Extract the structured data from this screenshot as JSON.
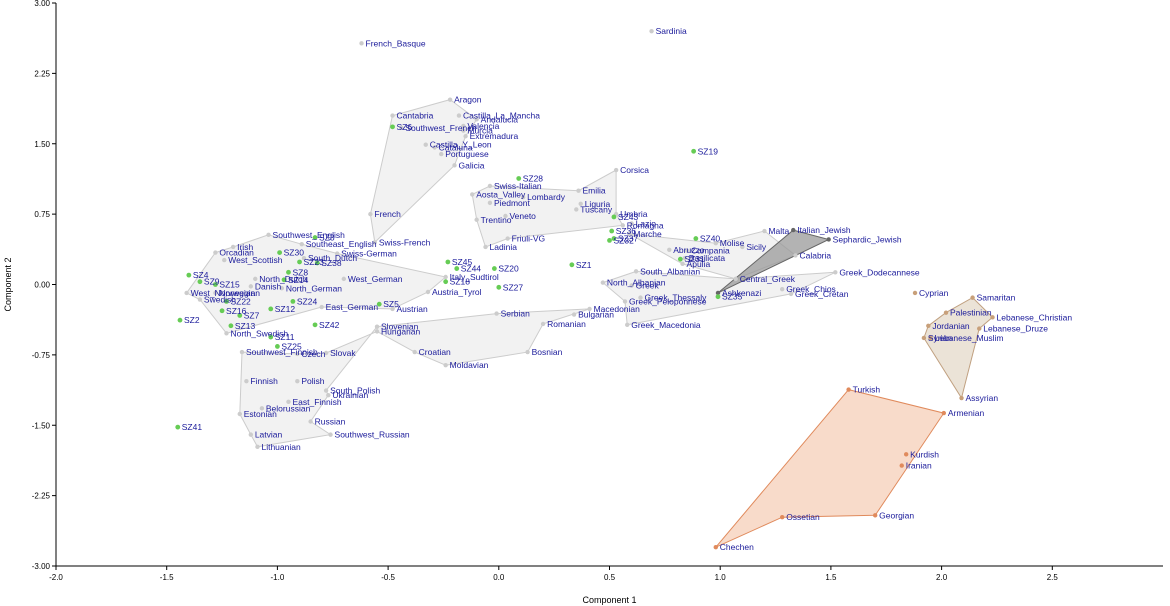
{
  "chart_data": {
    "type": "scatter",
    "xlabel": "Component 1",
    "ylabel": "Component 2",
    "xlim": [
      -2.0,
      3.0
    ],
    "ylim": [
      -3.0,
      3.0
    ],
    "xticks": [
      "-2.0",
      "-1.5",
      "-1.0",
      "-0.5",
      "0.0",
      "0.5",
      "1.0",
      "1.5",
      "2.0",
      "2.5"
    ],
    "xtick_values": [
      -2.0,
      -1.5,
      -1.0,
      -0.5,
      0.0,
      0.5,
      1.0,
      1.5,
      2.0,
      2.5
    ],
    "yticks": [
      "3.00",
      "2.25",
      "1.50",
      "0.75",
      "0.00",
      "-0.75",
      "-1.50",
      "-2.25",
      "-3.00"
    ],
    "ytick_values": [
      3.0,
      2.25,
      1.5,
      0.75,
      0.0,
      -0.75,
      -1.5,
      -2.25,
      -3.0
    ],
    "grid": false,
    "colors": {
      "europe_point": "#cccccc",
      "europe_fill": "#eeeeee",
      "europe_stroke": "#cccccc",
      "jewish_fill": "#999999",
      "jewish_stroke": "#666666",
      "levant_point": "#c8a07a",
      "levant_fill": "#e6dccd",
      "levant_stroke": "#c0a080",
      "caucasus_point": "#e08a5c",
      "caucasus_fill": "#f6d2bd",
      "caucasus_stroke": "#e08a5c",
      "sz_point": "#66cc55",
      "label": "#1a1a9a"
    },
    "groups": {
      "europe": [
        {
          "name": "French_Basque",
          "x": -0.62,
          "y": 2.57
        },
        {
          "name": "Sardinia",
          "x": 0.69,
          "y": 2.7
        },
        {
          "name": "Aragon",
          "x": -0.22,
          "y": 1.97
        },
        {
          "name": "Castilla_La_Mancha",
          "x": -0.18,
          "y": 1.8
        },
        {
          "name": "Andalucia",
          "x": -0.1,
          "y": 1.76
        },
        {
          "name": "Cantabria",
          "x": -0.48,
          "y": 1.8
        },
        {
          "name": "Southwest_French",
          "x": -0.44,
          "y": 1.67
        },
        {
          "name": "Valencia",
          "x": -0.16,
          "y": 1.69
        },
        {
          "name": "Murcia",
          "x": -0.16,
          "y": 1.64
        },
        {
          "name": "Extremadura",
          "x": -0.15,
          "y": 1.58
        },
        {
          "name": "Castilla_Y_Leon",
          "x": -0.33,
          "y": 1.49
        },
        {
          "name": "Cataluna",
          "x": -0.29,
          "y": 1.46
        },
        {
          "name": "Portuguese",
          "x": -0.26,
          "y": 1.39
        },
        {
          "name": "Galicia",
          "x": -0.2,
          "y": 1.27
        },
        {
          "name": "Corsica",
          "x": 0.53,
          "y": 1.22
        },
        {
          "name": "Swiss-Italian",
          "x": -0.04,
          "y": 1.05
        },
        {
          "name": "Emilia",
          "x": 0.36,
          "y": 1.0
        },
        {
          "name": "Aosta_Valley",
          "x": -0.12,
          "y": 0.96
        },
        {
          "name": "Lombardy",
          "x": 0.11,
          "y": 0.93
        },
        {
          "name": "Piedmont",
          "x": -0.04,
          "y": 0.87
        },
        {
          "name": "Liguria",
          "x": 0.37,
          "y": 0.86
        },
        {
          "name": "Tuscany",
          "x": 0.35,
          "y": 0.8
        },
        {
          "name": "French",
          "x": -0.58,
          "y": 0.75
        },
        {
          "name": "Umbria",
          "x": 0.53,
          "y": 0.75
        },
        {
          "name": "Veneto",
          "x": 0.03,
          "y": 0.73
        },
        {
          "name": "Trentino",
          "x": -0.1,
          "y": 0.69
        },
        {
          "name": "Lazio",
          "x": 0.6,
          "y": 0.65
        },
        {
          "name": "Romagna",
          "x": 0.56,
          "y": 0.63
        },
        {
          "name": "Marche",
          "x": 0.59,
          "y": 0.54
        },
        {
          "name": "Malta",
          "x": 1.2,
          "y": 0.57
        },
        {
          "name": "Molise",
          "x": 0.98,
          "y": 0.44
        },
        {
          "name": "Abruzzo",
          "x": 0.77,
          "y": 0.37
        },
        {
          "name": "Campania",
          "x": 0.85,
          "y": 0.36
        },
        {
          "name": "Sicily",
          "x": 1.1,
          "y": 0.4
        },
        {
          "name": "Basilicata",
          "x": 0.84,
          "y": 0.28
        },
        {
          "name": "Apulia",
          "x": 0.83,
          "y": 0.22
        },
        {
          "name": "Calabria",
          "x": 1.34,
          "y": 0.31
        },
        {
          "name": "Friuli-VG",
          "x": 0.04,
          "y": 0.49
        },
        {
          "name": "Ladinia",
          "x": -0.06,
          "y": 0.4
        },
        {
          "name": "Southwest_English",
          "x": -1.04,
          "y": 0.53
        },
        {
          "name": "Irish",
          "x": -1.2,
          "y": 0.4
        },
        {
          "name": "Southeast_English",
          "x": -0.89,
          "y": 0.43
        },
        {
          "name": "Swiss-French",
          "x": -0.56,
          "y": 0.45
        },
        {
          "name": "Orcadian",
          "x": -1.28,
          "y": 0.34
        },
        {
          "name": "West_Scottish",
          "x": -1.24,
          "y": 0.26
        },
        {
          "name": "South_Dutch",
          "x": -0.88,
          "y": 0.28
        },
        {
          "name": "Swiss-German",
          "x": -0.73,
          "y": 0.33
        },
        {
          "name": "North_Dutch",
          "x": -1.1,
          "y": 0.06
        },
        {
          "name": "West_German",
          "x": -0.7,
          "y": 0.06
        },
        {
          "name": "Danish",
          "x": -1.12,
          "y": -0.02
        },
        {
          "name": "Italy_Sudtirol",
          "x": -0.24,
          "y": 0.08
        },
        {
          "name": "Austria_Tyrol",
          "x": -0.32,
          "y": -0.08
        },
        {
          "name": "North_German",
          "x": -0.98,
          "y": -0.04
        },
        {
          "name": "West_Norwegian",
          "x": -1.41,
          "y": -0.09
        },
        {
          "name": "Norwegian",
          "x": -1.28,
          "y": -0.09
        },
        {
          "name": "Swedish",
          "x": -1.35,
          "y": -0.16
        },
        {
          "name": "East_German",
          "x": -0.8,
          "y": -0.24
        },
        {
          "name": "Austrian",
          "x": -0.48,
          "y": -0.26
        },
        {
          "name": "North_Swedish",
          "x": -1.23,
          "y": -0.52
        },
        {
          "name": "Serbian",
          "x": -0.01,
          "y": -0.31
        },
        {
          "name": "Macedonian",
          "x": 0.41,
          "y": -0.26
        },
        {
          "name": "Bulgarian",
          "x": 0.34,
          "y": -0.32
        },
        {
          "name": "Romanian",
          "x": 0.2,
          "y": -0.42
        },
        {
          "name": "Slovenian",
          "x": -0.55,
          "y": -0.45
        },
        {
          "name": "Hungarian",
          "x": -0.55,
          "y": -0.5
        },
        {
          "name": "Southwest_Finnish",
          "x": -1.16,
          "y": -0.72
        },
        {
          "name": "Czech",
          "x": -0.91,
          "y": -0.74
        },
        {
          "name": "Slovak",
          "x": -0.78,
          "y": -0.73
        },
        {
          "name": "Croatian",
          "x": -0.38,
          "y": -0.72
        },
        {
          "name": "Bosnian",
          "x": 0.13,
          "y": -0.72
        },
        {
          "name": "Moldavian",
          "x": -0.24,
          "y": -0.86
        },
        {
          "name": "Finnish",
          "x": -1.14,
          "y": -1.03
        },
        {
          "name": "Polish",
          "x": -0.91,
          "y": -1.03
        },
        {
          "name": "South_Polish",
          "x": -0.78,
          "y": -1.13
        },
        {
          "name": "Ukrainian",
          "x": -0.77,
          "y": -1.18
        },
        {
          "name": "East_Finnish",
          "x": -0.95,
          "y": -1.25
        },
        {
          "name": "Belorussian",
          "x": -1.07,
          "y": -1.32
        },
        {
          "name": "Estonian",
          "x": -1.17,
          "y": -1.38
        },
        {
          "name": "Russian",
          "x": -0.85,
          "y": -1.46
        },
        {
          "name": "Southwest_Russian",
          "x": -0.76,
          "y": -1.6
        },
        {
          "name": "Latvian",
          "x": -1.12,
          "y": -1.6
        },
        {
          "name": "Lithuanian",
          "x": -1.09,
          "y": -1.73
        },
        {
          "name": "Greek",
          "x": 0.6,
          "y": -0.01
        },
        {
          "name": "South_Albanian",
          "x": 0.62,
          "y": 0.14
        },
        {
          "name": "North_Albanian",
          "x": 0.47,
          "y": 0.02
        },
        {
          "name": "Central_Greek",
          "x": 1.07,
          "y": 0.06
        },
        {
          "name": "Greek_Dodecannese",
          "x": 1.52,
          "y": 0.13
        },
        {
          "name": "Greek_Chios",
          "x": 1.28,
          "y": -0.05
        },
        {
          "name": "Greek_Cretan",
          "x": 1.32,
          "y": -0.1
        },
        {
          "name": "Greek_Thessaly",
          "x": 0.64,
          "y": -0.14
        },
        {
          "name": "Greek_Peloponnese",
          "x": 0.57,
          "y": -0.18
        },
        {
          "name": "Greek_Macedonia",
          "x": 0.58,
          "y": -0.43
        }
      ],
      "jewish": [
        {
          "name": "Italian_Jewish",
          "x": 1.33,
          "y": 0.58
        },
        {
          "name": "Sephardic_Jewish",
          "x": 1.49,
          "y": 0.48
        },
        {
          "name": "Ashkenazi",
          "x": 0.99,
          "y": -0.09
        }
      ],
      "levant": [
        {
          "name": "Cyprian",
          "x": 1.88,
          "y": -0.09
        },
        {
          "name": "Samaritan",
          "x": 2.14,
          "y": -0.14
        },
        {
          "name": "Palestinian",
          "x": 2.02,
          "y": -0.3
        },
        {
          "name": "Lebanese_Christian",
          "x": 2.23,
          "y": -0.35
        },
        {
          "name": "Jordanian",
          "x": 1.94,
          "y": -0.44
        },
        {
          "name": "Lebanese_Druze",
          "x": 2.17,
          "y": -0.47
        },
        {
          "name": "Syrian",
          "x": 1.92,
          "y": -0.57
        },
        {
          "name": "Lebanese_Muslim",
          "x": 1.95,
          "y": -0.57
        },
        {
          "name": "Assyrian",
          "x": 2.09,
          "y": -1.21
        }
      ],
      "caucasus": [
        {
          "name": "Turkish",
          "x": 1.58,
          "y": -1.12
        },
        {
          "name": "Armenian",
          "x": 2.01,
          "y": -1.37
        },
        {
          "name": "Kurdish",
          "x": 1.84,
          "y": -1.81
        },
        {
          "name": "Iranian",
          "x": 1.82,
          "y": -1.93
        },
        {
          "name": "Georgian",
          "x": 1.7,
          "y": -2.46
        },
        {
          "name": "Ossetian",
          "x": 1.28,
          "y": -2.48
        },
        {
          "name": "Chechen",
          "x": 0.98,
          "y": -2.8
        }
      ],
      "sz": [
        {
          "name": "SZ6",
          "x": -0.48,
          "y": 1.68
        },
        {
          "name": "SZ19",
          "x": 0.88,
          "y": 1.42
        },
        {
          "name": "SZ28",
          "x": 0.09,
          "y": 1.13
        },
        {
          "name": "SZ43",
          "x": 0.52,
          "y": 0.72
        },
        {
          "name": "SZ36",
          "x": 0.51,
          "y": 0.57
        },
        {
          "name": "SZ37",
          "x": 0.52,
          "y": 0.49
        },
        {
          "name": "SZ32",
          "x": 0.5,
          "y": 0.47
        },
        {
          "name": "SZ40",
          "x": 0.89,
          "y": 0.49
        },
        {
          "name": "SZ31",
          "x": 0.82,
          "y": 0.27
        },
        {
          "name": "SZ3",
          "x": -0.83,
          "y": 0.5
        },
        {
          "name": "SZ30",
          "x": -0.99,
          "y": 0.34
        },
        {
          "name": "SZ23",
          "x": -0.9,
          "y": 0.24
        },
        {
          "name": "SZ38",
          "x": -0.82,
          "y": 0.23
        },
        {
          "name": "SZ8",
          "x": -0.95,
          "y": 0.13
        },
        {
          "name": "SZ14",
          "x": -0.97,
          "y": 0.05
        },
        {
          "name": "SZ45",
          "x": -0.23,
          "y": 0.24
        },
        {
          "name": "SZ44",
          "x": -0.19,
          "y": 0.17
        },
        {
          "name": "SZ18",
          "x": -0.24,
          "y": 0.03
        },
        {
          "name": "SZ20",
          "x": -0.02,
          "y": 0.17
        },
        {
          "name": "SZ1",
          "x": 0.33,
          "y": 0.21
        },
        {
          "name": "SZ27",
          "x": 0.0,
          "y": -0.03
        },
        {
          "name": "SZ4",
          "x": -1.4,
          "y": 0.1
        },
        {
          "name": "SZ9",
          "x": -1.35,
          "y": 0.03
        },
        {
          "name": "SZ15",
          "x": -1.28,
          "y": 0.0
        },
        {
          "name": "SZ24",
          "x": -0.93,
          "y": -0.18
        },
        {
          "name": "SZ22",
          "x": -1.23,
          "y": -0.18
        },
        {
          "name": "SZ12",
          "x": -1.03,
          "y": -0.26
        },
        {
          "name": "SZ5",
          "x": -0.54,
          "y": -0.21
        },
        {
          "name": "SZ16",
          "x": -1.25,
          "y": -0.28
        },
        {
          "name": "SZ7",
          "x": -1.17,
          "y": -0.33
        },
        {
          "name": "SZ2",
          "x": -1.44,
          "y": -0.38
        },
        {
          "name": "SZ13",
          "x": -1.21,
          "y": -0.44
        },
        {
          "name": "SZ42",
          "x": -0.83,
          "y": -0.43
        },
        {
          "name": "SZ11",
          "x": -1.03,
          "y": -0.56
        },
        {
          "name": "SZ25",
          "x": -1.0,
          "y": -0.66
        },
        {
          "name": "SZ35",
          "x": 0.99,
          "y": -0.13
        },
        {
          "name": "SZ41",
          "x": -1.45,
          "y": -1.52
        }
      ]
    },
    "hulls": [
      {
        "group": "europe",
        "points": [
          "Aragon",
          "Andalucia",
          "Extremadura",
          "Galicia",
          "Swiss-French",
          "French",
          "Cantabria"
        ]
      },
      {
        "group": "europe",
        "points": [
          "Swiss-Italian",
          "Emilia",
          "Corsica",
          "Umbria",
          "Romagna",
          "Friuli-VG",
          "Ladinia",
          "Trentino",
          "Aosta_Valley"
        ]
      },
      {
        "group": "europe",
        "points": [
          "Southwest_English",
          "Southeast_English",
          "Swiss-German",
          "Italy_Sudtirol",
          "Austria_Tyrol",
          "Austrian",
          "East_German",
          "North_Swedish",
          "Swedish",
          "West_Norwegian",
          "Orcadian",
          "Irish"
        ]
      },
      {
        "group": "europe",
        "points": [
          "Serbian",
          "Macedonian",
          "Romanian",
          "Bosnian",
          "Moldavian",
          "Croatian",
          "Hungarian",
          "Slovenian"
        ]
      },
      {
        "group": "europe",
        "points": [
          "Slovenian",
          "Hungarian",
          "Slovak",
          "Czech",
          "Southwest_Finnish",
          "Estonian",
          "Latvian",
          "Lithuanian",
          "Southwest_Russian",
          "Russian",
          "Ukrainian",
          "South_Polish"
        ]
      },
      {
        "group": "europe",
        "points": [
          "Malta",
          "Calabria",
          "Central_Greek",
          "Apulia",
          "Marche",
          "Molise"
        ]
      },
      {
        "group": "europe",
        "points": [
          "South_Albanian",
          "Central_Greek",
          "Greek_Dodecannese",
          "Greek_Cretan",
          "Greek_Macedonia",
          "Greek_Peloponnese",
          "North_Albanian"
        ]
      },
      {
        "group": "jewish",
        "points": [
          "Italian_Jewish",
          "Sephardic_Jewish",
          "Ashkenazi"
        ]
      },
      {
        "group": "levant",
        "points": [
          "Samaritan",
          "Lebanese_Christian",
          "Lebanese_Druze",
          "Assyrian",
          "Syrian",
          "Jordanian",
          "Palestinian"
        ]
      },
      {
        "group": "caucasus",
        "points": [
          "Turkish",
          "Armenian",
          "Georgian",
          "Ossetian",
          "Chechen"
        ]
      }
    ]
  }
}
